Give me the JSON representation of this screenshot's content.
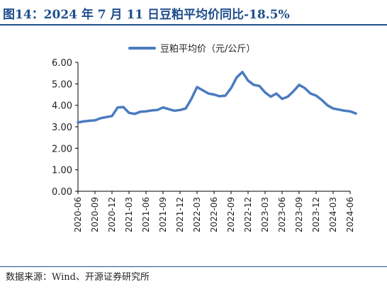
{
  "figure": {
    "title": "图14：2024 年 7 月 11 日豆粕平均价同比-18.5%",
    "source": "数据来源：Wind、开源证券研究所"
  },
  "colors": {
    "series": "#4a7bbf",
    "title": "#1f4e8c",
    "axis": "#000000"
  },
  "chart_data": {
    "type": "line",
    "title": "",
    "xlabel": "",
    "ylabel": "",
    "ylim": [
      0,
      6
    ],
    "yticks": [
      "0.00",
      "1.00",
      "2.00",
      "3.00",
      "4.00",
      "5.00",
      "6.00"
    ],
    "xticks": [
      "2020-06",
      "2020-09",
      "2020-12",
      "2021-03",
      "2021-06",
      "2021-09",
      "2021-12",
      "2022-03",
      "2022-06",
      "2022-09",
      "2022-12",
      "2023-03",
      "2023-06",
      "2023-09",
      "2023-12",
      "2024-03",
      "2024-06"
    ],
    "grid": false,
    "legend": "top-center",
    "series": [
      {
        "name": "豆粕平均价（元/公斤）",
        "x": [
          "2020-06",
          "2020-07",
          "2020-08",
          "2020-09",
          "2020-10",
          "2020-11",
          "2020-12",
          "2021-01",
          "2021-02",
          "2021-03",
          "2021-04",
          "2021-05",
          "2021-06",
          "2021-07",
          "2021-08",
          "2021-09",
          "2021-10",
          "2021-11",
          "2021-12",
          "2022-01",
          "2022-02",
          "2022-03",
          "2022-04",
          "2022-05",
          "2022-06",
          "2022-07",
          "2022-08",
          "2022-09",
          "2022-10",
          "2022-11",
          "2022-12",
          "2023-01",
          "2023-02",
          "2023-03",
          "2023-04",
          "2023-05",
          "2023-06",
          "2023-07",
          "2023-08",
          "2023-09",
          "2023-10",
          "2023-11",
          "2023-12",
          "2024-01",
          "2024-02",
          "2024-03",
          "2024-04",
          "2024-05",
          "2024-06",
          "2024-07"
        ],
        "values": [
          3.2,
          3.25,
          3.28,
          3.3,
          3.4,
          3.45,
          3.5,
          3.9,
          3.92,
          3.65,
          3.6,
          3.7,
          3.72,
          3.76,
          3.78,
          3.9,
          3.82,
          3.75,
          3.78,
          3.85,
          4.3,
          4.85,
          4.7,
          4.55,
          4.5,
          4.42,
          4.45,
          4.8,
          5.3,
          5.55,
          5.15,
          4.95,
          4.9,
          4.6,
          4.4,
          4.55,
          4.3,
          4.4,
          4.65,
          4.95,
          4.8,
          4.55,
          4.45,
          4.25,
          4.0,
          3.85,
          3.8,
          3.75,
          3.72,
          3.62
        ]
      }
    ]
  }
}
